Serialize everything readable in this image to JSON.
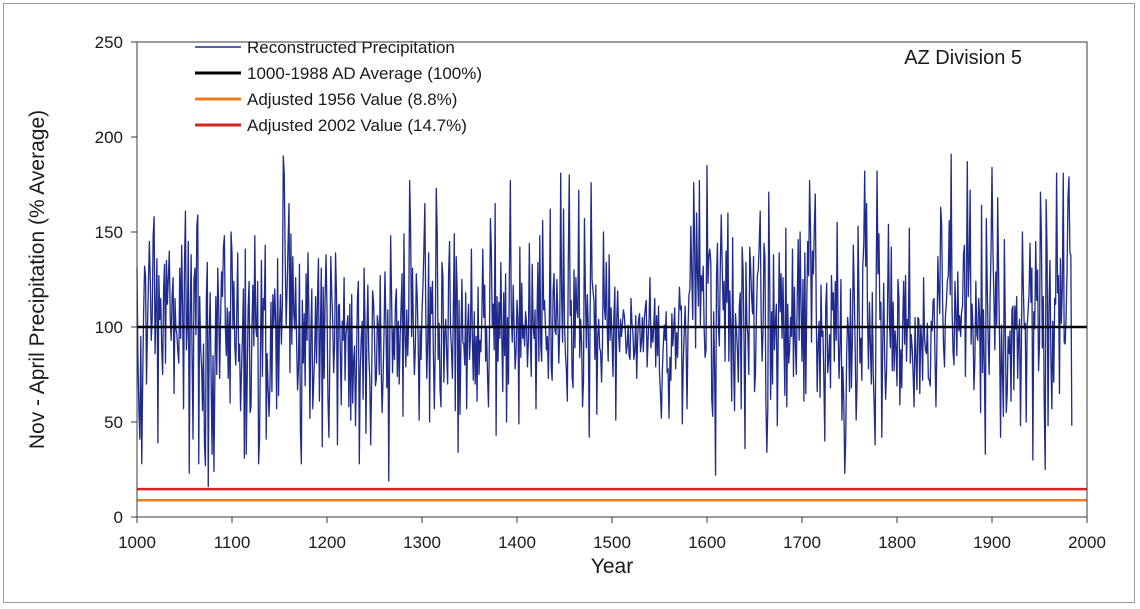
{
  "chart_data": {
    "type": "line",
    "title": "AZ Division 5",
    "xlabel": "Year",
    "ylabel": "Nov - April Precipitation (% Average)",
    "xlim": [
      1000,
      2000
    ],
    "ylim": [
      0,
      250
    ],
    "x_ticks": [
      1000,
      1100,
      1200,
      1300,
      1400,
      1500,
      1600,
      1700,
      1800,
      1900,
      2000
    ],
    "y_ticks": [
      0,
      50,
      100,
      150,
      200,
      250
    ],
    "grid": false,
    "legend_position": "top-left",
    "series": [
      {
        "name": "Reconstructed Precipitation",
        "color": "#1f2a8c",
        "x_start": 1000,
        "x_step": 1,
        "values": [
          131,
          83,
          56,
          41,
          95,
          28,
          72,
          108,
          132,
          127,
          70,
          98,
          123,
          145,
          125,
          93,
          104,
          148,
          158,
          86,
          110,
          136,
          39,
          127,
          104,
          115,
          89,
          75,
          120,
          133,
          81,
          135,
          112,
          126,
          140,
          104,
          93,
          117,
          126,
          65,
          115,
          99,
          96,
          87,
          81,
          131,
          94,
          143,
          111,
          57,
          134,
          161,
          88,
          100,
          145,
          23,
          105,
          138,
          84,
          41,
          125,
          131,
          96,
          153,
          159,
          28,
          116,
          89,
          79,
          56,
          91,
          39,
          27,
          115,
          134,
          16,
          94,
          118,
          74,
          33,
          85,
          24,
          75,
          116,
          75,
          131,
          110,
          73,
          105,
          129,
          116,
          142,
          148,
          100,
          85,
          110,
          73,
          108,
          60,
          150,
          139,
          99,
          124,
          89,
          80,
          106,
          139,
          82,
          91,
          56,
          77,
          95,
          120,
          31,
          141,
          33,
          73,
          110,
          124,
          55,
          58,
          101,
          122,
          90,
          148,
          100,
          95,
          124,
          28,
          41,
          89,
          135,
          74,
          115,
          109,
          143,
          41,
          86,
          68,
          53,
          70,
          113,
          66,
          117,
          100,
          120,
          102,
          57,
          136,
          64,
          101,
          117,
          91,
          112,
          190,
          181,
          136,
          101,
          120,
          144,
          165,
          76,
          149,
          91,
          137,
          108,
          99,
          126,
          92,
          67,
          78,
          133,
          46,
          28,
          114,
          81,
          107,
          69,
          128,
          93,
          139,
          105,
          52,
          96,
          120,
          57,
          71,
          86,
          116,
          81,
          115,
          136,
          61,
          95,
          131,
          37,
          121,
          73,
          116,
          138,
          109,
          62,
          42,
          83,
          137,
          118,
          103,
          76,
          91,
          139,
          117,
          38,
          111,
          112,
          87,
          59,
          103,
          93,
          126,
          72,
          96,
          101,
          106,
          58,
          112,
          51,
          117,
          60,
          82,
          90,
          48,
          80,
          115,
          124,
          28,
          77,
          94,
          103,
          62,
          131,
          104,
          44,
          96,
          122,
          85,
          73,
          38,
          72,
          119,
          113,
          96,
          69,
          73,
          106,
          101,
          75,
          127,
          79,
          55,
          72,
          96,
          129,
          103,
          68,
          109,
          19,
          90,
          148,
          115,
          76,
          99,
          83,
          112,
          120,
          74,
          103,
          70,
          95,
          111,
          128,
          53,
          149,
          96,
          79,
          109,
          85,
          104,
          177,
          152,
          95,
          131,
          96,
          75,
          89,
          128,
          115,
          92,
          51,
          99,
          83,
          107,
          122,
          141,
          165,
          106,
          73,
          92,
          139,
          50,
          121,
          107,
          124,
          85,
          57,
          91,
          173,
          150,
          83,
          102,
          67,
          58,
          134,
          127,
          71,
          97,
          104,
          85,
          70,
          128,
          145,
          99,
          88,
          73,
          109,
          149,
          56,
          137,
          120,
          34,
          114,
          54,
          92,
          125,
          92,
          91,
          80,
          118,
          57,
          99,
          112,
          83,
          95,
          141,
          94,
          72,
          108,
          70,
          95,
          61,
          121,
          75,
          93,
          87,
          105,
          141,
          105,
          122,
          82,
          99,
          74,
          58,
          96,
          157,
          140,
          100,
          112,
          88,
          165,
          43,
          116,
          82,
          113,
          94,
          134,
          96,
          66,
          118,
          85,
          128,
          50,
          105,
          70,
          129,
          177,
          106,
          92,
          122,
          99,
          78,
          87,
          114,
          104,
          49,
          142,
          84,
          123,
          94,
          101,
          90,
          108,
          102,
          79,
          93,
          144,
          96,
          74,
          133,
          101,
          94,
          109,
          57,
          103,
          134,
          82,
          148,
          90,
          82,
          156,
          109,
          114,
          99,
          88,
          95,
          73,
          102,
          162,
          79,
          72,
          119,
          128,
          98,
          96,
          125,
          105,
          81,
          99,
          181,
          115,
          92,
          162,
          102,
          86,
          77,
          61,
          135,
          180,
          106,
          114,
          74,
          68,
          130,
          89,
          126,
          109,
          105,
          172,
          84,
          104,
          92,
          58,
          72,
          157,
          119,
          89,
          117,
          101,
          42,
          106,
          176,
          125,
          119,
          114,
          83,
          122,
          54,
          95,
          104,
          89,
          87,
          71,
          92,
          150,
          110,
          104,
          134,
          99,
          82,
          138,
          93,
          110,
          95,
          74,
          106,
          121,
          51,
          104,
          119,
          96,
          87,
          104,
          95,
          102,
          109,
          106,
          98,
          86,
          90,
          101,
          85,
          83,
          115,
          102,
          97,
          83,
          87,
          106,
          73,
          95,
          104,
          107,
          87,
          92,
          105,
          87,
          104,
          110,
          114,
          79,
          94,
          104,
          126,
          89,
          100,
          92,
          101,
          115,
          79,
          106,
          85,
          111,
          76,
          65,
          52,
          77,
          91,
          101,
          93,
          108,
          76,
          78,
          52,
          84,
          72,
          107,
          90,
          99,
          110,
          78,
          97,
          84,
          102,
          121,
          109,
          111,
          49,
          81,
          97,
          111,
          90,
          57,
          98,
          117,
          120,
          153,
          127,
          104,
          176,
          144,
          89,
          160,
          128,
          111,
          177,
          101,
          127,
          119,
          132,
          99,
          84,
          88,
          185,
          123,
          137,
          141,
          134,
          62,
          53,
          108,
          79,
          22,
          126,
          144,
          101,
          90,
          132,
          159,
          132,
          109,
          124,
          82,
          140,
          113,
          160,
          82,
          119,
          98,
          61,
          147,
          82,
          56,
          107,
          98,
          88,
          71,
          111,
          118,
          57,
          142,
          130,
          92,
          36,
          134,
          102,
          96,
          75,
          142,
          131,
          115,
          107,
          137,
          66,
          75,
          106,
          127,
          130,
          144,
          161,
          106,
          82,
          98,
          144,
          137,
          60,
          34,
          57,
          171,
          126,
          62,
          108,
          70,
          138,
          88,
          102,
          112,
          48,
          95,
          139,
          108,
          128,
          94,
          126,
          92,
          64,
          152,
          58,
          112,
          81,
          88,
          105,
          95,
          141,
          74,
          121,
          91,
          75,
          116,
          146,
          93,
          150,
          111,
          82,
          125,
          61,
          139,
          65,
          112,
          145,
          127,
          177,
          150,
          92,
          140,
          128,
          153,
          170,
          108,
          66,
          91,
          103,
          63,
          122,
          95,
          98,
          73,
          40,
          111,
          123,
          76,
          83,
          96,
          68,
          127,
          109,
          118,
          82,
          124,
          93,
          155,
          99,
          73,
          91,
          125,
          51,
          79,
          61,
          23,
          40,
          86,
          105,
          98,
          66,
          120,
          68,
          92,
          143,
          119,
          87,
          51,
          71,
          153,
          114,
          81,
          94,
          72,
          132,
          143,
          182,
          132,
          165,
          103,
          78,
          113,
          91,
          70,
          118,
          75,
          58,
          38,
          117,
          182,
          128,
          149,
          104,
          113,
          42,
          93,
          123,
          84,
          62,
          77,
          109,
          154,
          104,
          89,
          142,
          77,
          113,
          77,
          98,
          89,
          69,
          125,
          116,
          59,
          88,
          68,
          102,
          124,
          91,
          127,
          82,
          104,
          100,
          152,
          81,
          96,
          89,
          75,
          58,
          105,
          84,
          67,
          105,
          104,
          65,
          101,
          93,
          72,
          126,
          94,
          88,
          86,
          102,
          73,
          72,
          69,
          103,
          98,
          114,
          115,
          85,
          58,
          90,
          137,
          119,
          107,
          163,
          154,
          113,
          90,
          79,
          106,
          113,
          124,
          127,
          156,
          117,
          191,
          108,
          87,
          80,
          124,
          107,
          85,
          129,
          98,
          106,
          95,
          108,
          111,
          138,
          143,
          74,
          114,
          187,
          116,
          133,
          172,
          91,
          112,
          99,
          67,
          83,
          124,
          96,
          93,
          115,
          105,
          55,
          164,
          76,
          109,
          76,
          33,
          157,
          122,
          93,
          75,
          115,
          141,
          184,
          140,
          115,
          88,
          129,
          101,
          168,
          126,
          92,
          42,
          101,
          76,
          53,
          146,
          102,
          55,
          65,
          95,
          86,
          98,
          61,
          109,
          111,
          67,
          111,
          99,
          116,
          73,
          95,
          104,
          48,
          94,
          150,
          120,
          99,
          102,
          50,
          101,
          108,
          118,
          144,
          113,
          131,
          30,
          108,
          99,
          145,
          114,
          130,
          77,
          91,
          171,
          149,
          89,
          116,
          59,
          25,
          167,
          139,
          48,
          111,
          135,
          83,
          57,
          103,
          71,
          115,
          112,
          181,
          118,
          127,
          65,
          136,
          102,
          120,
          181,
          92,
          91,
          105,
          130,
          168,
          179,
          139,
          138,
          48
        ]
      },
      {
        "name": "1000-1988 AD Average (100%)",
        "color": "#000000",
        "value": 100
      },
      {
        "name": "Adjusted 1956 Value  (8.8%)",
        "color": "#f07c1e",
        "value": 8.8
      },
      {
        "name": "Adjusted 2002 Value  (14.7%)",
        "color": "#d62424",
        "value": 14.7
      }
    ]
  }
}
